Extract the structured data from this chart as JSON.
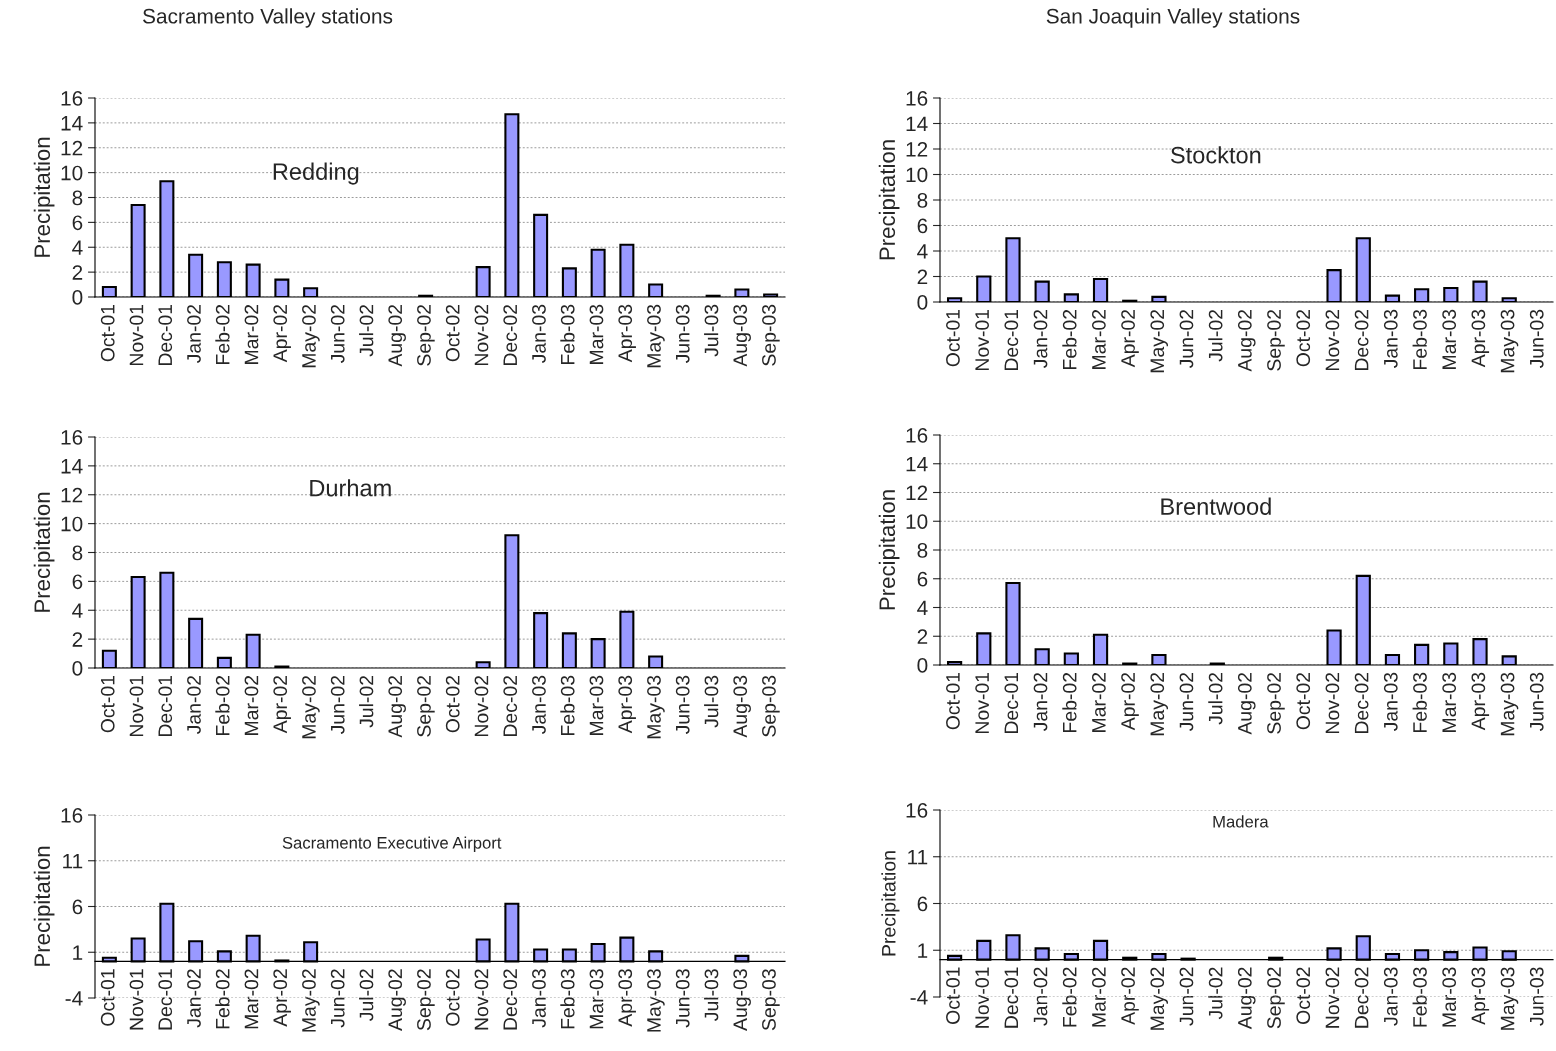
{
  "chart_data": [
    {
      "type": "bar",
      "subtitle": "Sacramento Valley stations",
      "title": "Redding",
      "ylabel": "Precipitation",
      "categories": [
        "Oct-01",
        "Nov-01",
        "Dec-01",
        "Jan-02",
        "Feb-02",
        "Mar-02",
        "Apr-02",
        "May-02",
        "Jun-02",
        "Jul-02",
        "Aug-02",
        "Sep-02",
        "Oct-02",
        "Nov-02",
        "Dec-02",
        "Jan-03",
        "Feb-03",
        "Mar-03",
        "Apr-03",
        "May-03",
        "Jun-03",
        "Jul-03",
        "Aug-03",
        "Sep-03"
      ],
      "values": [
        0.8,
        7.4,
        9.3,
        3.4,
        2.8,
        2.6,
        1.4,
        0.7,
        0,
        0,
        0,
        0.1,
        0,
        2.4,
        14.7,
        6.6,
        2.3,
        3.8,
        4.2,
        1.0,
        0,
        0.1,
        0.6,
        0.2
      ],
      "color": "#9999ff",
      "ylim": [
        0,
        16
      ],
      "yticks": [
        0,
        2,
        4,
        6,
        8,
        10,
        12,
        14,
        16
      ],
      "grid": "y"
    },
    {
      "type": "bar",
      "subtitle": "San Joaquin Valley stations",
      "title": "Stockton",
      "ylabel": "Precipitation",
      "categories": [
        "Oct-01",
        "Nov-01",
        "Dec-01",
        "Jan-02",
        "Feb-02",
        "Mar-02",
        "Apr-02",
        "May-02",
        "Jun-02",
        "Jul-02",
        "Aug-02",
        "Sep-02",
        "Oct-02",
        "Nov-02",
        "Dec-02",
        "Jan-03",
        "Feb-03",
        "Mar-03",
        "Apr-03",
        "May-03",
        "Jun-03"
      ],
      "values": [
        0.3,
        2.0,
        5.0,
        1.6,
        0.6,
        1.8,
        0.1,
        0.4,
        0,
        0,
        0,
        0,
        0,
        2.5,
        5.0,
        0.5,
        1.0,
        1.1,
        1.6,
        0.3,
        0
      ],
      "color": "#9999ff",
      "ylim": [
        0,
        16
      ],
      "yticks": [
        0,
        2,
        4,
        6,
        8,
        10,
        12,
        14,
        16
      ],
      "grid": "y"
    },
    {
      "type": "bar",
      "title": "Durham",
      "ylabel": "Precipitation",
      "categories": [
        "Oct-01",
        "Nov-01",
        "Dec-01",
        "Jan-02",
        "Feb-02",
        "Mar-02",
        "Apr-02",
        "May-02",
        "Jun-02",
        "Jul-02",
        "Aug-02",
        "Sep-02",
        "Oct-02",
        "Nov-02",
        "Dec-02",
        "Jan-03",
        "Feb-03",
        "Mar-03",
        "Apr-03",
        "May-03",
        "Jun-03",
        "Jul-03",
        "Aug-03",
        "Sep-03"
      ],
      "values": [
        1.2,
        6.3,
        6.6,
        3.4,
        0.7,
        2.3,
        0.1,
        0,
        0,
        0,
        0,
        0,
        0,
        0.4,
        9.2,
        3.8,
        2.4,
        2.0,
        3.9,
        0.8,
        0,
        0,
        0,
        0
      ],
      "color": "#9999ff",
      "ylim": [
        0,
        16
      ],
      "yticks": [
        0,
        2,
        4,
        6,
        8,
        10,
        12,
        14,
        16
      ],
      "grid": "y"
    },
    {
      "type": "bar",
      "title": "Brentwood",
      "ylabel": "Precipitation",
      "categories": [
        "Oct-01",
        "Nov-01",
        "Dec-01",
        "Jan-02",
        "Feb-02",
        "Mar-02",
        "Apr-02",
        "May-02",
        "Jun-02",
        "Jul-02",
        "Aug-02",
        "Sep-02",
        "Oct-02",
        "Nov-02",
        "Dec-02",
        "Jan-03",
        "Feb-03",
        "Mar-03",
        "Apr-03",
        "May-03",
        "Jun-03"
      ],
      "values": [
        0.2,
        2.2,
        5.7,
        1.1,
        0.8,
        2.1,
        0.1,
        0.7,
        0,
        0.1,
        0,
        0,
        0,
        2.4,
        6.2,
        0.7,
        1.4,
        1.5,
        1.8,
        0.6,
        0
      ],
      "color": "#9999ff",
      "ylim": [
        0,
        16
      ],
      "yticks": [
        0,
        2,
        4,
        6,
        8,
        10,
        12,
        14,
        16
      ],
      "grid": "y"
    },
    {
      "type": "bar",
      "title": "Sacramento Executive Airport",
      "ylabel": "Precipitation",
      "categories": [
        "Oct-01",
        "Nov-01",
        "Dec-01",
        "Jan-02",
        "Feb-02",
        "Mar-02",
        "Apr-02",
        "May-02",
        "Jun-02",
        "Jul-02",
        "Aug-02",
        "Sep-02",
        "Oct-02",
        "Nov-02",
        "Dec-02",
        "Jan-03",
        "Feb-03",
        "Mar-03",
        "Apr-03",
        "May-03",
        "Jun-03",
        "Jul-03",
        "Aug-03",
        "Sep-03"
      ],
      "values": [
        0.4,
        2.5,
        6.3,
        2.2,
        1.1,
        2.8,
        0.1,
        2.1,
        0,
        0,
        0,
        0,
        0,
        2.4,
        6.3,
        1.3,
        1.3,
        1.9,
        2.6,
        1.1,
        0,
        0,
        0.6,
        0
      ],
      "color": "#9999ff",
      "ylim": [
        -4,
        16
      ],
      "yticks": [
        -4,
        1,
        6,
        11,
        16
      ],
      "grid": "y"
    },
    {
      "type": "bar",
      "title": "Madera",
      "ylabel": "Precipitation",
      "categories": [
        "Oct-01",
        "Nov-01",
        "Dec-01",
        "Jan-02",
        "Feb-02",
        "Mar-02",
        "Apr-02",
        "May-02",
        "Jun-02",
        "Jul-02",
        "Aug-02",
        "Sep-02",
        "Oct-02",
        "Nov-02",
        "Dec-02",
        "Jan-03",
        "Feb-03",
        "Mar-03",
        "Apr-03",
        "May-03",
        "Jun-03"
      ],
      "values": [
        0.4,
        2.0,
        2.6,
        1.2,
        0.6,
        2.0,
        0.2,
        0.6,
        0.1,
        0,
        0,
        0.2,
        0,
        1.2,
        2.5,
        0.6,
        1.0,
        0.8,
        1.3,
        0.9,
        0
      ],
      "color": "#9999ff",
      "ylim": [
        -4,
        16
      ],
      "yticks": [
        -4,
        1,
        6,
        11,
        16
      ],
      "grid": "y"
    }
  ]
}
